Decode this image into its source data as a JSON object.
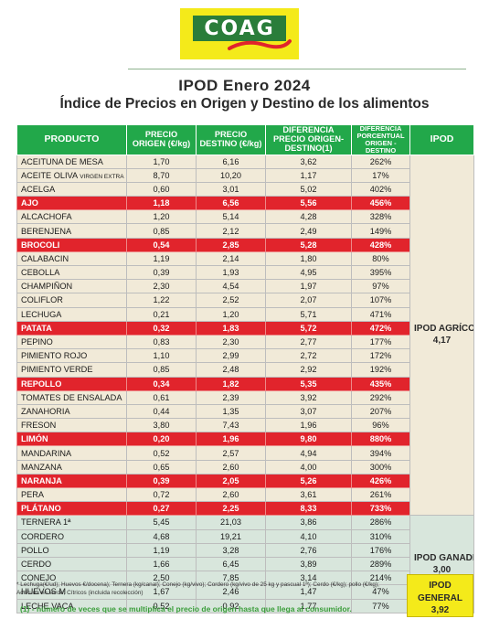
{
  "logo": {
    "text": "COAG"
  },
  "title": "IPOD Enero 2024",
  "subtitle": "Índice de Precios en Origen y Destino de los alimentos",
  "table": {
    "headers": {
      "producto": "PRODUCTO",
      "precio_origen": "PRECIO ORIGEN (€/kg)",
      "precio_destino": "PRECIO DESTINO (€/kg)",
      "diferencia": "DIFERENCIA PRECIO ORIGEN-DESTINO(1)",
      "diferencia_pct": "DIFERENCIA PORCENTUAL ORIGEN - DESTINO",
      "ipod": "IPOD"
    },
    "agricola_label": "IPOD AGRÍCOLA",
    "agricola_value": "4,17",
    "ganadero_label": "IPOD GANADERO",
    "ganadero_value": "3,00",
    "rows": [
      {
        "producto": "ACEITUNA DE MESA",
        "origen": "1,70",
        "destino": "6,16",
        "dif": "3,62",
        "pct": "262%",
        "hl": false,
        "grupo": "agr"
      },
      {
        "producto": "ACEITE OLIVA",
        "suffix": "VIRGEN EXTRA",
        "origen": "8,70",
        "destino": "10,20",
        "dif": "1,17",
        "pct": "17%",
        "hl": false,
        "grupo": "agr"
      },
      {
        "producto": "ACELGA",
        "origen": "0,60",
        "destino": "3,01",
        "dif": "5,02",
        "pct": "402%",
        "hl": false,
        "grupo": "agr"
      },
      {
        "producto": "AJO",
        "origen": "1,18",
        "destino": "6,56",
        "dif": "5,56",
        "pct": "456%",
        "hl": true,
        "grupo": "agr"
      },
      {
        "producto": "ALCACHOFA",
        "origen": "1,20",
        "destino": "5,14",
        "dif": "4,28",
        "pct": "328%",
        "hl": false,
        "grupo": "agr"
      },
      {
        "producto": "BERENJENA",
        "origen": "0,85",
        "destino": "2,12",
        "dif": "2,49",
        "pct": "149%",
        "hl": false,
        "grupo": "agr"
      },
      {
        "producto": "BROCOLI",
        "origen": "0,54",
        "destino": "2,85",
        "dif": "5,28",
        "pct": "428%",
        "hl": true,
        "grupo": "agr"
      },
      {
        "producto": "CALABACIN",
        "origen": "1,19",
        "destino": "2,14",
        "dif": "1,80",
        "pct": "80%",
        "hl": false,
        "grupo": "agr"
      },
      {
        "producto": "CEBOLLA",
        "origen": "0,39",
        "destino": "1,93",
        "dif": "4,95",
        "pct": "395%",
        "hl": false,
        "grupo": "agr"
      },
      {
        "producto": "CHAMPIÑON",
        "origen": "2,30",
        "destino": "4,54",
        "dif": "1,97",
        "pct": "97%",
        "hl": false,
        "grupo": "agr"
      },
      {
        "producto": "COLIFLOR",
        "origen": "1,22",
        "destino": "2,52",
        "dif": "2,07",
        "pct": "107%",
        "hl": false,
        "grupo": "agr"
      },
      {
        "producto": "LECHUGA",
        "origen": "0,21",
        "destino": "1,20",
        "dif": "5,71",
        "pct": "471%",
        "hl": false,
        "grupo": "agr"
      },
      {
        "producto": "PATATA",
        "origen": "0,32",
        "destino": "1,83",
        "dif": "5,72",
        "pct": "472%",
        "hl": true,
        "grupo": "agr"
      },
      {
        "producto": "PEPINO",
        "origen": "0,83",
        "destino": "2,30",
        "dif": "2,77",
        "pct": "177%",
        "hl": false,
        "grupo": "agr"
      },
      {
        "producto": "PIMIENTO ROJO",
        "origen": "1,10",
        "destino": "2,99",
        "dif": "2,72",
        "pct": "172%",
        "hl": false,
        "grupo": "agr"
      },
      {
        "producto": "PIMIENTO VERDE",
        "origen": "0,85",
        "destino": "2,48",
        "dif": "2,92",
        "pct": "192%",
        "hl": false,
        "grupo": "agr"
      },
      {
        "producto": "REPOLLO",
        "origen": "0,34",
        "destino": "1,82",
        "dif": "5,35",
        "pct": "435%",
        "hl": true,
        "grupo": "agr"
      },
      {
        "producto": "TOMATES DE ENSALADA",
        "origen": "0,61",
        "destino": "2,39",
        "dif": "3,92",
        "pct": "292%",
        "hl": false,
        "grupo": "agr"
      },
      {
        "producto": "ZANAHORIA",
        "origen": "0,44",
        "destino": "1,35",
        "dif": "3,07",
        "pct": "207%",
        "hl": false,
        "grupo": "agr"
      },
      {
        "producto": "FRESON",
        "origen": "3,80",
        "destino": "7,43",
        "dif": "1,96",
        "pct": "96%",
        "hl": false,
        "grupo": "agr"
      },
      {
        "producto": "LIMÓN",
        "origen": "0,20",
        "destino": "1,96",
        "dif": "9,80",
        "pct": "880%",
        "hl": true,
        "grupo": "agr"
      },
      {
        "producto": "MANDARINA",
        "origen": "0,52",
        "destino": "2,57",
        "dif": "4,94",
        "pct": "394%",
        "hl": false,
        "grupo": "agr"
      },
      {
        "producto": "MANZANA",
        "origen": "0,65",
        "destino": "2,60",
        "dif": "4,00",
        "pct": "300%",
        "hl": false,
        "grupo": "agr"
      },
      {
        "producto": "NARANJA",
        "origen": "0,39",
        "destino": "2,05",
        "dif": "5,26",
        "pct": "426%",
        "hl": true,
        "grupo": "agr"
      },
      {
        "producto": "PERA",
        "origen": "0,72",
        "destino": "2,60",
        "dif": "3,61",
        "pct": "261%",
        "hl": false,
        "grupo": "agr"
      },
      {
        "producto": "PLÁTANO",
        "origen": "0,27",
        "destino": "2,25",
        "dif": "8,33",
        "pct": "733%",
        "hl": true,
        "grupo": "agr"
      },
      {
        "producto": "TERNERA 1ª",
        "origen": "5,45",
        "destino": "21,03",
        "dif": "3,86",
        "pct": "286%",
        "hl": false,
        "grupo": "gan"
      },
      {
        "producto": "CORDERO",
        "origen": "4,68",
        "destino": "19,21",
        "dif": "4,10",
        "pct": "310%",
        "hl": false,
        "grupo": "gan"
      },
      {
        "producto": "POLLO",
        "origen": "1,19",
        "destino": "3,28",
        "dif": "2,76",
        "pct": "176%",
        "hl": false,
        "grupo": "gan"
      },
      {
        "producto": "CERDO",
        "origen": "1,66",
        "destino": "6,45",
        "dif": "3,89",
        "pct": "289%",
        "hl": false,
        "grupo": "gan"
      },
      {
        "producto": "CONEJO",
        "origen": "2,50",
        "destino": "7,85",
        "dif": "3,14",
        "pct": "214%",
        "hl": false,
        "grupo": "gan"
      },
      {
        "producto": "HUEVOS M",
        "origen": "1,67",
        "destino": "2,46",
        "dif": "1,47",
        "pct": "47%",
        "hl": false,
        "grupo": "gan"
      },
      {
        "producto": "LECHE VACA",
        "origen": "0,52",
        "destino": "0,92",
        "dif": "1,77",
        "pct": "77%",
        "hl": false,
        "grupo": "gan"
      }
    ]
  },
  "footnote_units": "* Lechuga(€/ud); Huevos €/docena); Ternera (kg/canal); Conejo (kg/vivo); Cordero (kg/vivo de 25 kg y pascual 1ª); Cerdo (€/kg); pollo (€/kg); Aceituna en verde; Cítricos (incluida recolección)",
  "footnote_definition": "(1) - número de veces que se multiplica el precio de origen hasta que llega al consumidor.",
  "general": {
    "label": "IPOD GENERAL",
    "value": "3,92"
  },
  "colors": {
    "header_green": "#22a84a",
    "highlight_red": "#e1242c",
    "agricola_bg": "#f1ead8",
    "ganadero_bg": "#d8e6dc",
    "general_yellow": "#f4ea1a"
  }
}
